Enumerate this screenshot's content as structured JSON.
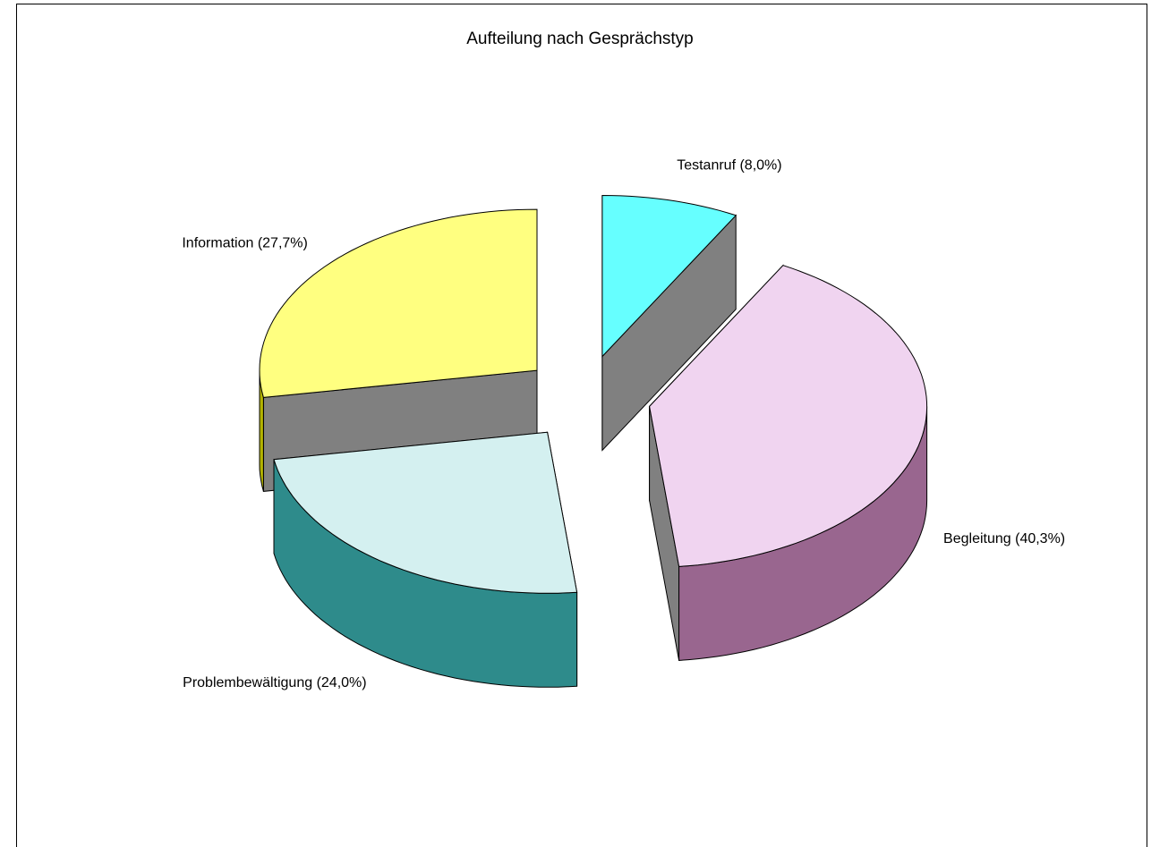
{
  "chart_data": {
    "type": "pie3d",
    "title": "Aufteilung nach Gesprächstyp",
    "values": [
      8.0,
      40.3,
      24.0,
      27.7
    ],
    "value_labels": [
      "Testanruf (8,0%)",
      "Begleitung (40,3%)",
      "Problembewältigung (24,0%)",
      "Information (27,7%)"
    ],
    "colors": [
      "#66ffff",
      "#f0d4f0",
      "#d4f0f0",
      "#ffff80"
    ],
    "side_colors": [
      "#4dbfbf",
      "#99668f",
      "#2e8b8b",
      "#b3b300"
    ]
  }
}
